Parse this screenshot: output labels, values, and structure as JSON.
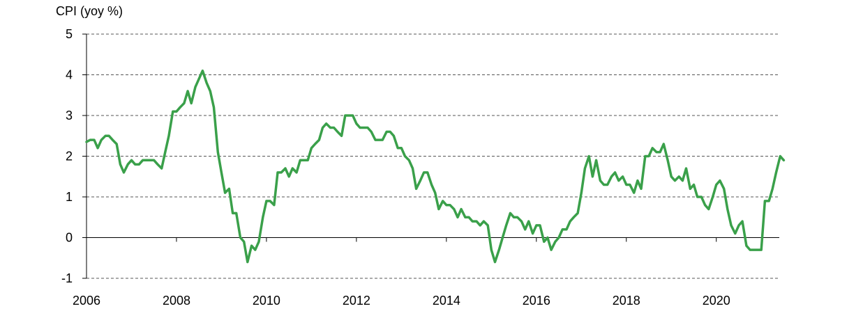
{
  "chart_data": {
    "type": "line",
    "title": "",
    "ylabel": "CPI (yoy %)",
    "xlabel": "",
    "xlim": [
      2006.0,
      2021.4
    ],
    "ylim": [
      -1,
      5
    ],
    "y_ticks": [
      -1,
      0,
      1,
      2,
      3,
      4,
      5
    ],
    "x_ticks": [
      2006,
      2008,
      2010,
      2012,
      2014,
      2016,
      2018,
      2020
    ],
    "x_tick_labels": [
      "2006",
      "2008",
      "2010",
      "2012",
      "2014",
      "2016",
      "2018",
      "2020"
    ],
    "y_tick_labels": [
      "-1",
      "0",
      "1",
      "2",
      "3",
      "4",
      "5"
    ],
    "grid": "horizontal-dashed",
    "legend": "none",
    "series": [
      {
        "color": "#3aa04a",
        "points": [
          [
            2006.0,
            2.35
          ],
          [
            2006.08,
            2.4
          ],
          [
            2006.17,
            2.4
          ],
          [
            2006.25,
            2.2
          ],
          [
            2006.33,
            2.4
          ],
          [
            2006.42,
            2.5
          ],
          [
            2006.5,
            2.5
          ],
          [
            2006.58,
            2.4
          ],
          [
            2006.67,
            2.3
          ],
          [
            2006.75,
            1.8
          ],
          [
            2006.83,
            1.6
          ],
          [
            2006.92,
            1.8
          ],
          [
            2007.0,
            1.9
          ],
          [
            2007.08,
            1.8
          ],
          [
            2007.17,
            1.8
          ],
          [
            2007.25,
            1.9
          ],
          [
            2007.33,
            1.9
          ],
          [
            2007.42,
            1.9
          ],
          [
            2007.5,
            1.9
          ],
          [
            2007.58,
            1.8
          ],
          [
            2007.67,
            1.7
          ],
          [
            2007.75,
            2.1
          ],
          [
            2007.83,
            2.5
          ],
          [
            2007.92,
            3.1
          ],
          [
            2008.0,
            3.1
          ],
          [
            2008.08,
            3.2
          ],
          [
            2008.17,
            3.3
          ],
          [
            2008.25,
            3.6
          ],
          [
            2008.33,
            3.3
          ],
          [
            2008.42,
            3.7
          ],
          [
            2008.5,
            3.9
          ],
          [
            2008.58,
            4.1
          ],
          [
            2008.67,
            3.8
          ],
          [
            2008.75,
            3.6
          ],
          [
            2008.83,
            3.2
          ],
          [
            2008.92,
            2.1
          ],
          [
            2009.0,
            1.6
          ],
          [
            2009.08,
            1.1
          ],
          [
            2009.17,
            1.2
          ],
          [
            2009.25,
            0.6
          ],
          [
            2009.33,
            0.6
          ],
          [
            2009.42,
            0.0
          ],
          [
            2009.5,
            -0.1
          ],
          [
            2009.58,
            -0.6
          ],
          [
            2009.67,
            -0.2
          ],
          [
            2009.75,
            -0.3
          ],
          [
            2009.83,
            -0.1
          ],
          [
            2009.92,
            0.5
          ],
          [
            2010.0,
            0.9
          ],
          [
            2010.08,
            0.9
          ],
          [
            2010.17,
            0.8
          ],
          [
            2010.25,
            1.6
          ],
          [
            2010.33,
            1.6
          ],
          [
            2010.42,
            1.7
          ],
          [
            2010.5,
            1.5
          ],
          [
            2010.58,
            1.7
          ],
          [
            2010.67,
            1.6
          ],
          [
            2010.75,
            1.9
          ],
          [
            2010.83,
            1.9
          ],
          [
            2010.92,
            1.9
          ],
          [
            2011.0,
            2.2
          ],
          [
            2011.08,
            2.3
          ],
          [
            2011.17,
            2.4
          ],
          [
            2011.25,
            2.7
          ],
          [
            2011.33,
            2.8
          ],
          [
            2011.42,
            2.7
          ],
          [
            2011.5,
            2.7
          ],
          [
            2011.58,
            2.6
          ],
          [
            2011.67,
            2.5
          ],
          [
            2011.75,
            3.0
          ],
          [
            2011.83,
            3.0
          ],
          [
            2011.92,
            3.0
          ],
          [
            2012.0,
            2.8
          ],
          [
            2012.08,
            2.7
          ],
          [
            2012.17,
            2.7
          ],
          [
            2012.25,
            2.7
          ],
          [
            2012.33,
            2.6
          ],
          [
            2012.42,
            2.4
          ],
          [
            2012.5,
            2.4
          ],
          [
            2012.58,
            2.4
          ],
          [
            2012.67,
            2.6
          ],
          [
            2012.75,
            2.6
          ],
          [
            2012.83,
            2.5
          ],
          [
            2012.92,
            2.2
          ],
          [
            2013.0,
            2.2
          ],
          [
            2013.08,
            2.0
          ],
          [
            2013.17,
            1.9
          ],
          [
            2013.25,
            1.7
          ],
          [
            2013.33,
            1.2
          ],
          [
            2013.42,
            1.4
          ],
          [
            2013.5,
            1.6
          ],
          [
            2013.58,
            1.6
          ],
          [
            2013.67,
            1.3
          ],
          [
            2013.75,
            1.1
          ],
          [
            2013.83,
            0.7
          ],
          [
            2013.92,
            0.9
          ],
          [
            2014.0,
            0.8
          ],
          [
            2014.08,
            0.8
          ],
          [
            2014.17,
            0.7
          ],
          [
            2014.25,
            0.5
          ],
          [
            2014.33,
            0.7
          ],
          [
            2014.42,
            0.5
          ],
          [
            2014.5,
            0.5
          ],
          [
            2014.58,
            0.4
          ],
          [
            2014.67,
            0.4
          ],
          [
            2014.75,
            0.3
          ],
          [
            2014.83,
            0.4
          ],
          [
            2014.92,
            0.3
          ],
          [
            2015.0,
            -0.3
          ],
          [
            2015.08,
            -0.6
          ],
          [
            2015.17,
            -0.3
          ],
          [
            2015.25,
            0.0
          ],
          [
            2015.33,
            0.3
          ],
          [
            2015.42,
            0.6
          ],
          [
            2015.5,
            0.5
          ],
          [
            2015.58,
            0.5
          ],
          [
            2015.67,
            0.4
          ],
          [
            2015.75,
            0.2
          ],
          [
            2015.83,
            0.4
          ],
          [
            2015.92,
            0.1
          ],
          [
            2016.0,
            0.3
          ],
          [
            2016.08,
            0.3
          ],
          [
            2016.17,
            -0.1
          ],
          [
            2016.25,
            0.0
          ],
          [
            2016.33,
            -0.3
          ],
          [
            2016.42,
            -0.1
          ],
          [
            2016.5,
            0.0
          ],
          [
            2016.58,
            0.2
          ],
          [
            2016.67,
            0.2
          ],
          [
            2016.75,
            0.4
          ],
          [
            2016.83,
            0.5
          ],
          [
            2016.92,
            0.6
          ],
          [
            2017.0,
            1.1
          ],
          [
            2017.08,
            1.7
          ],
          [
            2017.17,
            2.0
          ],
          [
            2017.25,
            1.5
          ],
          [
            2017.33,
            1.9
          ],
          [
            2017.42,
            1.4
          ],
          [
            2017.5,
            1.3
          ],
          [
            2017.58,
            1.3
          ],
          [
            2017.67,
            1.5
          ],
          [
            2017.75,
            1.6
          ],
          [
            2017.83,
            1.4
          ],
          [
            2017.92,
            1.5
          ],
          [
            2018.0,
            1.3
          ],
          [
            2018.08,
            1.3
          ],
          [
            2018.17,
            1.1
          ],
          [
            2018.25,
            1.4
          ],
          [
            2018.33,
            1.2
          ],
          [
            2018.42,
            2.0
          ],
          [
            2018.5,
            2.0
          ],
          [
            2018.58,
            2.2
          ],
          [
            2018.67,
            2.1
          ],
          [
            2018.75,
            2.1
          ],
          [
            2018.83,
            2.3
          ],
          [
            2018.92,
            1.9
          ],
          [
            2019.0,
            1.5
          ],
          [
            2019.08,
            1.4
          ],
          [
            2019.17,
            1.5
          ],
          [
            2019.25,
            1.4
          ],
          [
            2019.33,
            1.7
          ],
          [
            2019.42,
            1.2
          ],
          [
            2019.5,
            1.3
          ],
          [
            2019.58,
            1.0
          ],
          [
            2019.67,
            1.0
          ],
          [
            2019.75,
            0.8
          ],
          [
            2019.83,
            0.7
          ],
          [
            2019.92,
            1.0
          ],
          [
            2020.0,
            1.3
          ],
          [
            2020.08,
            1.4
          ],
          [
            2020.17,
            1.2
          ],
          [
            2020.25,
            0.7
          ],
          [
            2020.33,
            0.3
          ],
          [
            2020.42,
            0.1
          ],
          [
            2020.5,
            0.3
          ],
          [
            2020.58,
            0.4
          ],
          [
            2020.67,
            -0.2
          ],
          [
            2020.75,
            -0.3
          ],
          [
            2020.83,
            -0.3
          ],
          [
            2020.92,
            -0.3
          ],
          [
            2021.0,
            -0.3
          ],
          [
            2021.08,
            0.9
          ],
          [
            2021.17,
            0.9
          ],
          [
            2021.25,
            1.2
          ],
          [
            2021.33,
            1.6
          ],
          [
            2021.42,
            2.0
          ],
          [
            2021.5,
            1.9
          ]
        ]
      }
    ]
  }
}
